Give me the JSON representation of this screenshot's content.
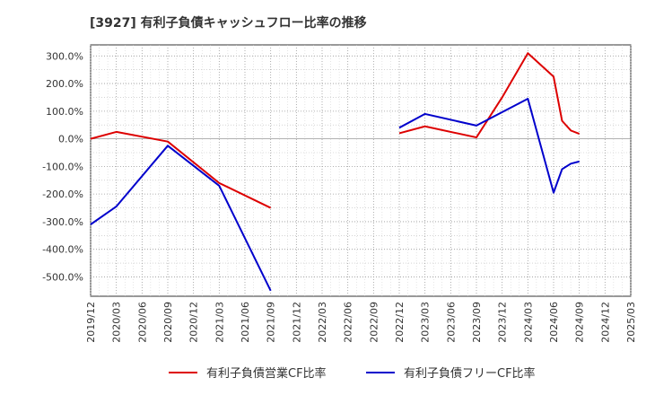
{
  "chart_data": {
    "type": "line",
    "title": "[3927]  有利子負債キャッシュフロー比率の推移",
    "xlabel": "",
    "ylabel": "",
    "ylim": [
      -570,
      340
    ],
    "yticks": [
      300,
      200,
      100,
      0,
      -100,
      -200,
      -300,
      -400,
      -500
    ],
    "ytick_labels": [
      "300.0%",
      "200.0%",
      "100.0%",
      "0.0%",
      "-100.0%",
      "-200.0%",
      "-300.0%",
      "-400.0%",
      "-500.0%"
    ],
    "x_labels": [
      "2019/12",
      "2020/03",
      "2020/06",
      "2020/09",
      "2020/12",
      "2021/03",
      "2021/06",
      "2021/09",
      "2021/12",
      "2022/03",
      "2022/06",
      "2022/09",
      "2022/12",
      "2023/03",
      "2023/06",
      "2023/09",
      "2023/12",
      "2024/03",
      "2024/06",
      "2024/09",
      "2024/12",
      "2025/03"
    ],
    "grid": true,
    "legend_position": "bottom",
    "series": [
      {
        "name": "有利子負債営業CF比率",
        "color": "#dd0000",
        "segments": [
          [
            [
              0,
              0
            ],
            [
              1,
              25
            ],
            [
              3,
              -10
            ],
            [
              5,
              -160
            ],
            [
              7,
              -250
            ]
          ],
          [
            [
              12,
              20
            ],
            [
              13,
              45
            ],
            [
              15,
              5
            ],
            [
              16,
              150
            ],
            [
              17,
              310
            ],
            [
              18,
              225
            ],
            [
              18.33,
              65
            ],
            [
              18.67,
              30
            ],
            [
              19,
              18
            ]
          ]
        ]
      },
      {
        "name": "有利子負債フリーCF比率",
        "color": "#0000cc",
        "segments": [
          [
            [
              0,
              -310
            ],
            [
              1,
              -245
            ],
            [
              3,
              -25
            ],
            [
              5,
              -170
            ],
            [
              7,
              -550
            ]
          ],
          [
            [
              12,
              40
            ],
            [
              13,
              90
            ],
            [
              15,
              48
            ],
            [
              17,
              145
            ],
            [
              18,
              -195
            ],
            [
              18.33,
              -110
            ],
            [
              18.67,
              -90
            ],
            [
              19,
              -82
            ]
          ]
        ]
      }
    ]
  }
}
